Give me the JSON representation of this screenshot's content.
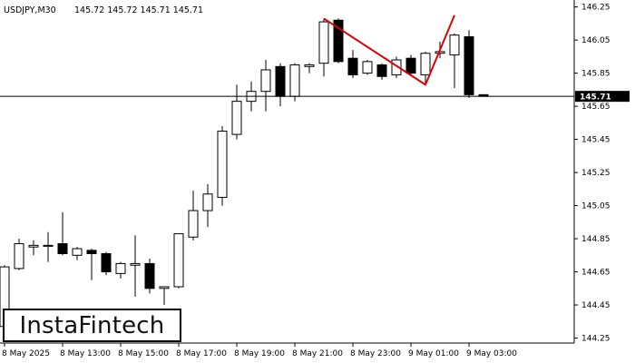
{
  "header": {
    "symbol": "USDJPY,M30",
    "ohlc": "145.72 145.72 145.71 145.71"
  },
  "logo": {
    "text": "InstaFintech"
  },
  "colors": {
    "pattern": "#e00000",
    "axis": "#000000",
    "candle_bull": "#ffffff",
    "candle_bear": "#000000"
  },
  "chart_data": {
    "type": "candlestick",
    "ylim": [
      144.22,
      146.27
    ],
    "y_ticks": [
      "146.25",
      "146.05",
      "145.85",
      "145.65",
      "145.45",
      "145.25",
      "145.05",
      "144.85",
      "144.65",
      "144.45",
      "144.25"
    ],
    "x_ticks": [
      "8 May 2025",
      "8 May 13:00",
      "8 May 15:00",
      "8 May 17:00",
      "8 May 19:00",
      "8 May 21:00",
      "8 May 23:00",
      "9 May 01:00",
      "9 May 03:00"
    ],
    "current_price": 145.71,
    "current_price_label": "145.71",
    "candles": [
      {
        "o": 144.32,
        "h": 144.69,
        "l": 144.3,
        "c": 144.68
      },
      {
        "o": 144.67,
        "h": 144.85,
        "l": 144.66,
        "c": 144.82
      },
      {
        "o": 144.8,
        "h": 144.84,
        "l": 144.75,
        "c": 144.81
      },
      {
        "o": 144.81,
        "h": 144.89,
        "l": 144.71,
        "c": 144.81
      },
      {
        "o": 144.82,
        "h": 145.01,
        "l": 144.75,
        "c": 144.76
      },
      {
        "o": 144.75,
        "h": 144.8,
        "l": 144.72,
        "c": 144.79
      },
      {
        "o": 144.78,
        "h": 144.79,
        "l": 144.6,
        "c": 144.76
      },
      {
        "o": 144.76,
        "h": 144.77,
        "l": 144.63,
        "c": 144.65
      },
      {
        "o": 144.64,
        "h": 144.71,
        "l": 144.61,
        "c": 144.7
      },
      {
        "o": 144.69,
        "h": 144.87,
        "l": 144.5,
        "c": 144.7
      },
      {
        "o": 144.7,
        "h": 144.73,
        "l": 144.52,
        "c": 144.55
      },
      {
        "o": 144.55,
        "h": 144.56,
        "l": 144.45,
        "c": 144.56
      },
      {
        "o": 144.56,
        "h": 144.88,
        "l": 144.55,
        "c": 144.88
      },
      {
        "o": 144.86,
        "h": 145.14,
        "l": 144.84,
        "c": 145.02
      },
      {
        "o": 145.02,
        "h": 145.18,
        "l": 144.92,
        "c": 145.12
      },
      {
        "o": 145.1,
        "h": 145.53,
        "l": 145.05,
        "c": 145.5
      },
      {
        "o": 145.48,
        "h": 145.78,
        "l": 145.45,
        "c": 145.68
      },
      {
        "o": 145.68,
        "h": 145.8,
        "l": 145.62,
        "c": 145.74
      },
      {
        "o": 145.74,
        "h": 145.93,
        "l": 145.62,
        "c": 145.87
      },
      {
        "o": 145.89,
        "h": 145.91,
        "l": 145.65,
        "c": 145.71
      },
      {
        "o": 145.71,
        "h": 145.91,
        "l": 145.68,
        "c": 145.9
      },
      {
        "o": 145.89,
        "h": 145.91,
        "l": 145.85,
        "c": 145.9
      },
      {
        "o": 145.91,
        "h": 146.18,
        "l": 145.83,
        "c": 146.16
      },
      {
        "o": 146.17,
        "h": 146.18,
        "l": 145.91,
        "c": 145.92
      },
      {
        "o": 145.94,
        "h": 145.99,
        "l": 145.82,
        "c": 145.84
      },
      {
        "o": 145.85,
        "h": 145.93,
        "l": 145.84,
        "c": 145.92
      },
      {
        "o": 145.9,
        "h": 145.91,
        "l": 145.81,
        "c": 145.83
      },
      {
        "o": 145.84,
        "h": 145.95,
        "l": 145.82,
        "c": 145.93
      },
      {
        "o": 145.94,
        "h": 145.96,
        "l": 145.83,
        "c": 145.85
      },
      {
        "o": 145.84,
        "h": 145.98,
        "l": 145.78,
        "c": 145.97
      },
      {
        "o": 145.97,
        "h": 146.04,
        "l": 145.94,
        "c": 145.98
      },
      {
        "o": 145.96,
        "h": 146.09,
        "l": 145.76,
        "c": 146.08
      },
      {
        "o": 146.07,
        "h": 146.11,
        "l": 145.7,
        "c": 145.72
      },
      {
        "o": 145.72,
        "h": 145.72,
        "l": 145.71,
        "c": 145.71
      }
    ],
    "pattern_line": [
      {
        "candle": 22,
        "price": 146.18
      },
      {
        "candle": 29,
        "price": 145.78
      },
      {
        "candle": 31,
        "price": 146.2
      }
    ]
  }
}
